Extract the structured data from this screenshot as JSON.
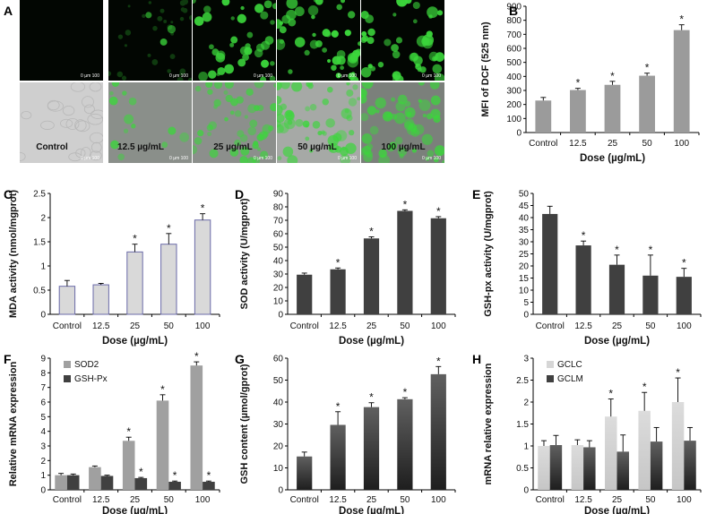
{
  "panel_letters": [
    "A",
    "B",
    "C",
    "D",
    "E",
    "F",
    "G",
    "H"
  ],
  "micrograph": {
    "scale_label": "0  µm 100",
    "columns": [
      "Control",
      "12.5 µg/mL",
      "25 µg/mL",
      "50 µg/mL",
      "100 µg/mL"
    ],
    "fluorescence_bg": "#020602",
    "cell_color": "#3bd63b"
  },
  "chart_data": [
    {
      "id": "B",
      "type": "bar",
      "categories": [
        "Control",
        "12.5",
        "25",
        "50",
        "100"
      ],
      "series": [
        {
          "values": [
            228,
            303,
            340,
            405,
            730
          ],
          "errors": [
            22,
            12,
            25,
            18,
            38
          ],
          "stars": [
            false,
            true,
            true,
            true,
            true
          ]
        }
      ],
      "xlabel": "Dose (µg/mL)",
      "ylabel": "MFI of DCF (525 nm)",
      "ylim": [
        0,
        900
      ],
      "yticks": [
        0,
        100,
        200,
        300,
        400,
        500,
        600,
        700,
        800,
        900
      ],
      "grid": false,
      "colors": [
        "#9b9b9b"
      ]
    },
    {
      "id": "C",
      "type": "bar",
      "categories": [
        "Control",
        "12.5",
        "25",
        "50",
        "100"
      ],
      "series": [
        {
          "values": [
            0.58,
            0.61,
            1.29,
            1.45,
            1.95
          ],
          "errors": [
            0.12,
            0.03,
            0.16,
            0.22,
            0.13
          ],
          "stars": [
            false,
            false,
            true,
            true,
            true
          ]
        }
      ],
      "xlabel": "Dose (µg/mL)",
      "ylabel": "MDA activity (nmol/mgprot)",
      "ylim": [
        0,
        2.5
      ],
      "yticks": [
        0,
        0.5,
        1,
        1.5,
        2,
        2.5
      ],
      "grid": false,
      "colors": [
        "#d9d9d9"
      ],
      "edge": "#6a6aa8"
    },
    {
      "id": "D",
      "type": "bar",
      "categories": [
        "Control",
        "12.5",
        "25",
        "50",
        "100"
      ],
      "series": [
        {
          "values": [
            29.5,
            33.5,
            56.5,
            77,
            71.5
          ],
          "errors": [
            1.2,
            1.0,
            1.2,
            0.8,
            1.2
          ],
          "stars": [
            false,
            true,
            true,
            true,
            true
          ]
        }
      ],
      "xlabel": "Dose (µg/mL)",
      "ylabel": "SOD activity (U/mgprot)",
      "ylim": [
        0,
        90
      ],
      "yticks": [
        0,
        10,
        20,
        30,
        40,
        50,
        60,
        70,
        80,
        90
      ],
      "grid": false,
      "colors": [
        "#404040"
      ]
    },
    {
      "id": "E",
      "type": "bar",
      "categories": [
        "Control",
        "12.5",
        "25",
        "50",
        "100"
      ],
      "series": [
        {
          "values": [
            41.5,
            28.5,
            20.5,
            16,
            15.5
          ],
          "errors": [
            3.2,
            1.8,
            4.0,
            8.5,
            3.5
          ],
          "stars": [
            false,
            true,
            true,
            true,
            true
          ]
        }
      ],
      "xlabel": "Dose (µg/mL)",
      "ylabel": "GSH-px activity (U/mgprot)",
      "ylim": [
        0,
        50
      ],
      "yticks": [
        0,
        5,
        10,
        15,
        20,
        25,
        30,
        35,
        40,
        45,
        50
      ],
      "grid": false,
      "colors": [
        "#404040"
      ]
    },
    {
      "id": "F",
      "type": "bar",
      "categories": [
        "Control",
        "12.5",
        "25",
        "50",
        "100"
      ],
      "series": [
        {
          "name": "SOD2",
          "values": [
            1.0,
            1.55,
            3.35,
            6.1,
            8.5
          ],
          "errors": [
            0.12,
            0.08,
            0.25,
            0.4,
            0.25
          ],
          "stars": [
            false,
            false,
            true,
            true,
            true
          ]
        },
        {
          "name": "GSH-Px",
          "values": [
            1.0,
            0.95,
            0.8,
            0.55,
            0.55
          ],
          "errors": [
            0.08,
            0.05,
            0.05,
            0.05,
            0.05
          ],
          "stars": [
            false,
            false,
            true,
            true,
            true
          ]
        }
      ],
      "xlabel": "Dose (µg/mL)",
      "ylabel": "Relative mRNA expression",
      "ylim": [
        0,
        9
      ],
      "yticks": [
        0,
        1,
        2,
        3,
        4,
        5,
        6,
        7,
        8,
        9
      ],
      "grid": false,
      "colors": [
        "#a0a0a0",
        "#404040"
      ],
      "legend": "top-left"
    },
    {
      "id": "G",
      "type": "bar",
      "categories": [
        "Control",
        "12.5",
        "25",
        "50",
        "100"
      ],
      "series": [
        {
          "values": [
            15.2,
            29.6,
            37.7,
            41.3,
            52.7
          ],
          "errors": [
            2.0,
            6.0,
            2.0,
            0.7,
            3.5
          ],
          "stars": [
            false,
            true,
            true,
            true,
            true
          ]
        }
      ],
      "xlabel": "Dose (µg/mL)",
      "ylabel": "GSH content (µmol/gprot)",
      "ylim": [
        0,
        60
      ],
      "yticks": [
        0,
        10,
        20,
        30,
        40,
        50,
        60
      ],
      "grid": false,
      "colors": [
        "#404040"
      ],
      "gradient": true
    },
    {
      "id": "H",
      "type": "bar",
      "categories": [
        "Control",
        "12.5",
        "25",
        "50",
        "100"
      ],
      "series": [
        {
          "name": "GCLC",
          "values": [
            1.0,
            1.02,
            1.67,
            1.8,
            2.0
          ],
          "errors": [
            0.12,
            0.12,
            0.4,
            0.42,
            0.55
          ],
          "stars": [
            false,
            false,
            true,
            true,
            true
          ]
        },
        {
          "name": "GCLM",
          "values": [
            1.02,
            0.97,
            0.87,
            1.1,
            1.12
          ],
          "errors": [
            0.22,
            0.15,
            0.38,
            0.32,
            0.3
          ],
          "stars": [
            false,
            false,
            false,
            false,
            false
          ]
        }
      ],
      "xlabel": "Dose (µg/mL)",
      "ylabel": "mRNA relative expression",
      "ylim": [
        0,
        3
      ],
      "yticks": [
        0,
        0.5,
        1,
        1.5,
        2,
        2.5,
        3
      ],
      "grid": false,
      "colors": [
        "#d6d6d6",
        "#404040"
      ],
      "legend": "top-left",
      "gradient": true
    }
  ]
}
